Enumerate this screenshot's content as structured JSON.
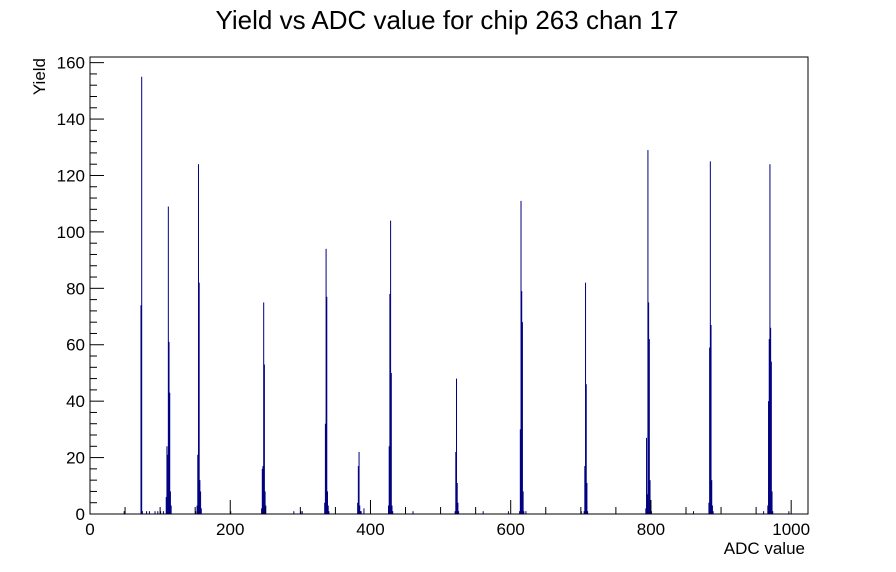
{
  "chart_data": {
    "type": "bar",
    "title": "Yield vs ADC value for chip 263 chan 17",
    "xlabel": "ADC value",
    "ylabel": "Yield",
    "xlim": [
      0,
      1024
    ],
    "ylim": [
      0,
      162
    ],
    "x_ticks": [
      0,
      200,
      400,
      600,
      800,
      1000
    ],
    "y_ticks": [
      0,
      20,
      40,
      60,
      80,
      100,
      120,
      140,
      160
    ],
    "grid": false,
    "legend": "none",
    "bar_color": "#000080",
    "bin_width": 1,
    "bins": [
      [
        48,
        1
      ],
      [
        72,
        74
      ],
      [
        73,
        155
      ],
      [
        74,
        1
      ],
      [
        80,
        1
      ],
      [
        84,
        1
      ],
      [
        92,
        1
      ],
      [
        96,
        1
      ],
      [
        100,
        1
      ],
      [
        104,
        1
      ],
      [
        108,
        6
      ],
      [
        109,
        24
      ],
      [
        110,
        21
      ],
      [
        111,
        109
      ],
      [
        112,
        61
      ],
      [
        113,
        43
      ],
      [
        114,
        8
      ],
      [
        115,
        3
      ],
      [
        150,
        1
      ],
      [
        152,
        3
      ],
      [
        153,
        21
      ],
      [
        154,
        124
      ],
      [
        155,
        82
      ],
      [
        156,
        12
      ],
      [
        157,
        8
      ],
      [
        158,
        2
      ],
      [
        200,
        1
      ],
      [
        244,
        2
      ],
      [
        245,
        16
      ],
      [
        246,
        17
      ],
      [
        247,
        75
      ],
      [
        248,
        53
      ],
      [
        249,
        8
      ],
      [
        250,
        3
      ],
      [
        290,
        1
      ],
      [
        300,
        1
      ],
      [
        302,
        1
      ],
      [
        334,
        4
      ],
      [
        335,
        32
      ],
      [
        336,
        94
      ],
      [
        337,
        77
      ],
      [
        338,
        8
      ],
      [
        339,
        3
      ],
      [
        340,
        1
      ],
      [
        381,
        4
      ],
      [
        382,
        17
      ],
      [
        383,
        22
      ],
      [
        384,
        3
      ],
      [
        385,
        1
      ],
      [
        386,
        1
      ],
      [
        390,
        2
      ],
      [
        425,
        3
      ],
      [
        426,
        24
      ],
      [
        427,
        78
      ],
      [
        428,
        104
      ],
      [
        429,
        50
      ],
      [
        430,
        3
      ],
      [
        431,
        1
      ],
      [
        460,
        1
      ],
      [
        520,
        1
      ],
      [
        521,
        22
      ],
      [
        522,
        48
      ],
      [
        523,
        11
      ],
      [
        524,
        4
      ],
      [
        525,
        1
      ],
      [
        560,
        1
      ],
      [
        596,
        1
      ],
      [
        612,
        1
      ],
      [
        613,
        30
      ],
      [
        614,
        111
      ],
      [
        615,
        79
      ],
      [
        616,
        68
      ],
      [
        617,
        8
      ],
      [
        618,
        1
      ],
      [
        621,
        1
      ],
      [
        700,
        1
      ],
      [
        704,
        1
      ],
      [
        705,
        17
      ],
      [
        706,
        82
      ],
      [
        707,
        46
      ],
      [
        708,
        11
      ],
      [
        709,
        1
      ],
      [
        792,
        2
      ],
      [
        793,
        27
      ],
      [
        794,
        7
      ],
      [
        795,
        129
      ],
      [
        796,
        75
      ],
      [
        797,
        62
      ],
      [
        798,
        12
      ],
      [
        799,
        3
      ],
      [
        800,
        1
      ],
      [
        860,
        1
      ],
      [
        882,
        4
      ],
      [
        883,
        59
      ],
      [
        884,
        125
      ],
      [
        885,
        67
      ],
      [
        886,
        12
      ],
      [
        887,
        3
      ],
      [
        888,
        1
      ],
      [
        960,
        1
      ],
      [
        966,
        3
      ],
      [
        967,
        40
      ],
      [
        968,
        62
      ],
      [
        969,
        124
      ],
      [
        970,
        66
      ],
      [
        971,
        54
      ],
      [
        972,
        8
      ],
      [
        973,
        1
      ],
      [
        996,
        1
      ]
    ]
  }
}
